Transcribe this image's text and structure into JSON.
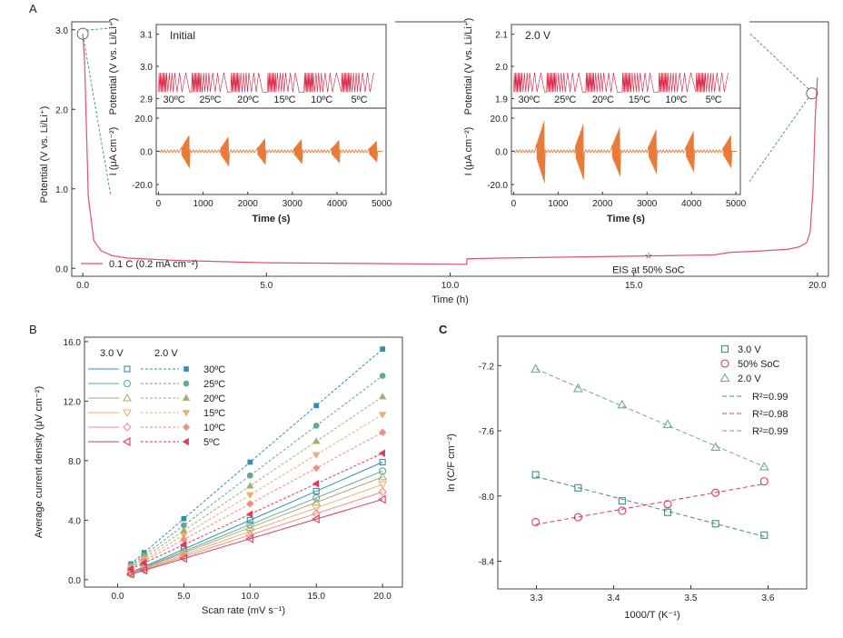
{
  "colors": {
    "trace": "#e8506a",
    "current": "#e87b3a",
    "inset_voltage": "#d81b3c",
    "guide": "#3d8f8a",
    "temps": [
      "#2f8fb0",
      "#5fa89a",
      "#a8ad78",
      "#e8b070",
      "#f08d85",
      "#e03a5c"
    ],
    "c_series": [
      "#3d8f8a",
      "#e03a5c",
      "#6fae8c"
    ]
  },
  "icons": {
    "zoom_marker": "circle-zoom-icon",
    "eis_marker": "star-icon"
  },
  "panels": {
    "a": "A",
    "b": "B",
    "c": "C"
  },
  "chart_data": [
    {
      "id": "A-main",
      "type": "line",
      "xlabel": "Time (h)",
      "ylabel": "Potential (V vs. Li/Li⁺)",
      "xlim": [
        -0.3,
        20.3
      ],
      "ylim": [
        -0.1,
        3.1
      ],
      "xticks": [
        "0.0",
        "5.0",
        "10.0",
        "15.0",
        "20.0"
      ],
      "yticks": [
        "0.0",
        "1.0",
        "2.0",
        "3.0"
      ],
      "legend": "0.1 C (0.2 mA cm⁻²)",
      "annotation": "EIS at 50% SoC",
      "annotation_point": [
        15.4,
        0.17
      ],
      "series": [
        {
          "name": "0.1 C",
          "x": [
            0,
            0.05,
            0.15,
            0.3,
            0.5,
            0.8,
            1.2,
            2.5,
            5.0,
            8.0,
            10.45,
            10.46,
            11.5,
            13.0,
            14.5,
            16.0,
            17.2,
            17.6,
            18.5,
            19.2,
            19.5,
            19.7,
            19.8,
            19.88,
            19.94,
            20.0
          ],
          "y": [
            2.95,
            2.6,
            0.9,
            0.35,
            0.22,
            0.16,
            0.13,
            0.1,
            0.07,
            0.06,
            0.05,
            0.12,
            0.13,
            0.14,
            0.15,
            0.16,
            0.17,
            0.2,
            0.22,
            0.24,
            0.27,
            0.32,
            0.45,
            1.0,
            1.9,
            2.4
          ]
        }
      ]
    },
    {
      "id": "A-inset-initial",
      "type": "line",
      "label": "Initial",
      "xlabel": "Time (s)",
      "xlim": [
        -50,
        5100
      ],
      "xticks": [
        "0",
        "1000",
        "2000",
        "3000",
        "4000",
        "5000"
      ],
      "top": {
        "ylabel": "Potential (V vs. Li/Li⁺)",
        "ylim": [
          2.87,
          3.13
        ],
        "yticks": [
          "2.9",
          "3.0",
          "3.1"
        ],
        "center": 2.95,
        "amp": 0.03,
        "temps": [
          "30ºC",
          "25ºC",
          "20ºC",
          "15ºC",
          "10ºC",
          "5ºC"
        ]
      },
      "bottom": {
        "ylabel": "I (μA cm⁻²)",
        "ylim": [
          -26,
          26
        ],
        "yticks": [
          "20.0",
          "0.0",
          "-20.0"
        ],
        "burst_times": [
          700,
          1580,
          2400,
          3220,
          4060,
          4900
        ],
        "burst_amps": [
          10,
          9,
          8,
          7.5,
          7,
          6.5
        ]
      }
    },
    {
      "id": "A-inset-2V",
      "type": "line",
      "label": "2.0 V",
      "xlabel": "Time (s)",
      "xlim": [
        -50,
        5100
      ],
      "xticks": [
        "0",
        "1000",
        "2000",
        "3000",
        "4000",
        "5000"
      ],
      "top": {
        "ylabel": "Potential (V vs. Li/Li⁺)",
        "ylim": [
          1.87,
          2.13
        ],
        "yticks": [
          "1.9",
          "2.0",
          "2.1"
        ],
        "center": 1.95,
        "amp": 0.03,
        "temps": [
          "30ºC",
          "25ºC",
          "20ºC",
          "15ºC",
          "10ºC",
          "5ºC"
        ]
      },
      "bottom": {
        "ylabel": "I (μA cm⁻²)",
        "ylim": [
          -26,
          26
        ],
        "yticks": [
          "20.0",
          "0.0",
          "-20.0"
        ],
        "burst_times": [
          700,
          1580,
          2400,
          3220,
          4060,
          4900
        ],
        "burst_amps": [
          19,
          17,
          15,
          13.5,
          12.5,
          10
        ]
      }
    },
    {
      "id": "B",
      "type": "scatter",
      "xlabel": "Scan rate (mV s⁻¹)",
      "ylabel": "Average current density (μV cm⁻²)",
      "xlim": [
        -2.5,
        21.5
      ],
      "ylim": [
        -0.5,
        16.3
      ],
      "xticks": [
        "0.0",
        "5.0",
        "10.0",
        "15.0",
        "20.0"
      ],
      "yticks": [
        "0.0",
        "4.0",
        "8.0",
        "12.0",
        "16.0"
      ],
      "x": [
        1,
        2,
        5,
        10,
        15,
        20
      ],
      "legend_headers": [
        "3.0 V",
        "2.0 V"
      ],
      "temps": [
        "30ºC",
        "25ºC",
        "20ºC",
        "15ºC",
        "10ºC",
        "5ºC"
      ],
      "markers": [
        "square",
        "circle",
        "triangle-up",
        "triangle-down",
        "diamond",
        "triangle-left"
      ],
      "slopes_3V": [
        0.39,
        0.36,
        0.34,
        0.315,
        0.29,
        0.265
      ],
      "slopes_2V": [
        0.76,
        0.67,
        0.6,
        0.54,
        0.48,
        0.41
      ]
    },
    {
      "id": "C",
      "type": "scatter",
      "xlabel": "1000/T (K⁻¹)",
      "ylabel": "ln (C/F cm⁻²)",
      "xlim": [
        3.25,
        3.65
      ],
      "ylim": [
        -8.57,
        -7.02
      ],
      "xticks": [
        "3.3",
        "3.4",
        "3.5",
        "3.6"
      ],
      "yticks": [
        "-7.2",
        "-7.6",
        "-8.0",
        "-8.4"
      ],
      "x": [
        3.299,
        3.354,
        3.411,
        3.47,
        3.532,
        3.595
      ],
      "series": [
        {
          "name": "3.0 V",
          "marker": "square",
          "values": [
            -7.87,
            -7.95,
            -8.03,
            -8.1,
            -8.17,
            -8.24
          ],
          "fit": "R²=0.99"
        },
        {
          "name": "50% SoC",
          "marker": "circle",
          "values": [
            -8.16,
            -8.13,
            -8.09,
            -8.05,
            -7.98,
            -7.91
          ],
          "fit": "R²=0.98"
        },
        {
          "name": "2.0 V",
          "marker": "triangle-up",
          "values": [
            -7.22,
            -7.34,
            -7.44,
            -7.56,
            -7.7,
            -7.82
          ],
          "fit": "R²=0.99"
        }
      ]
    }
  ]
}
